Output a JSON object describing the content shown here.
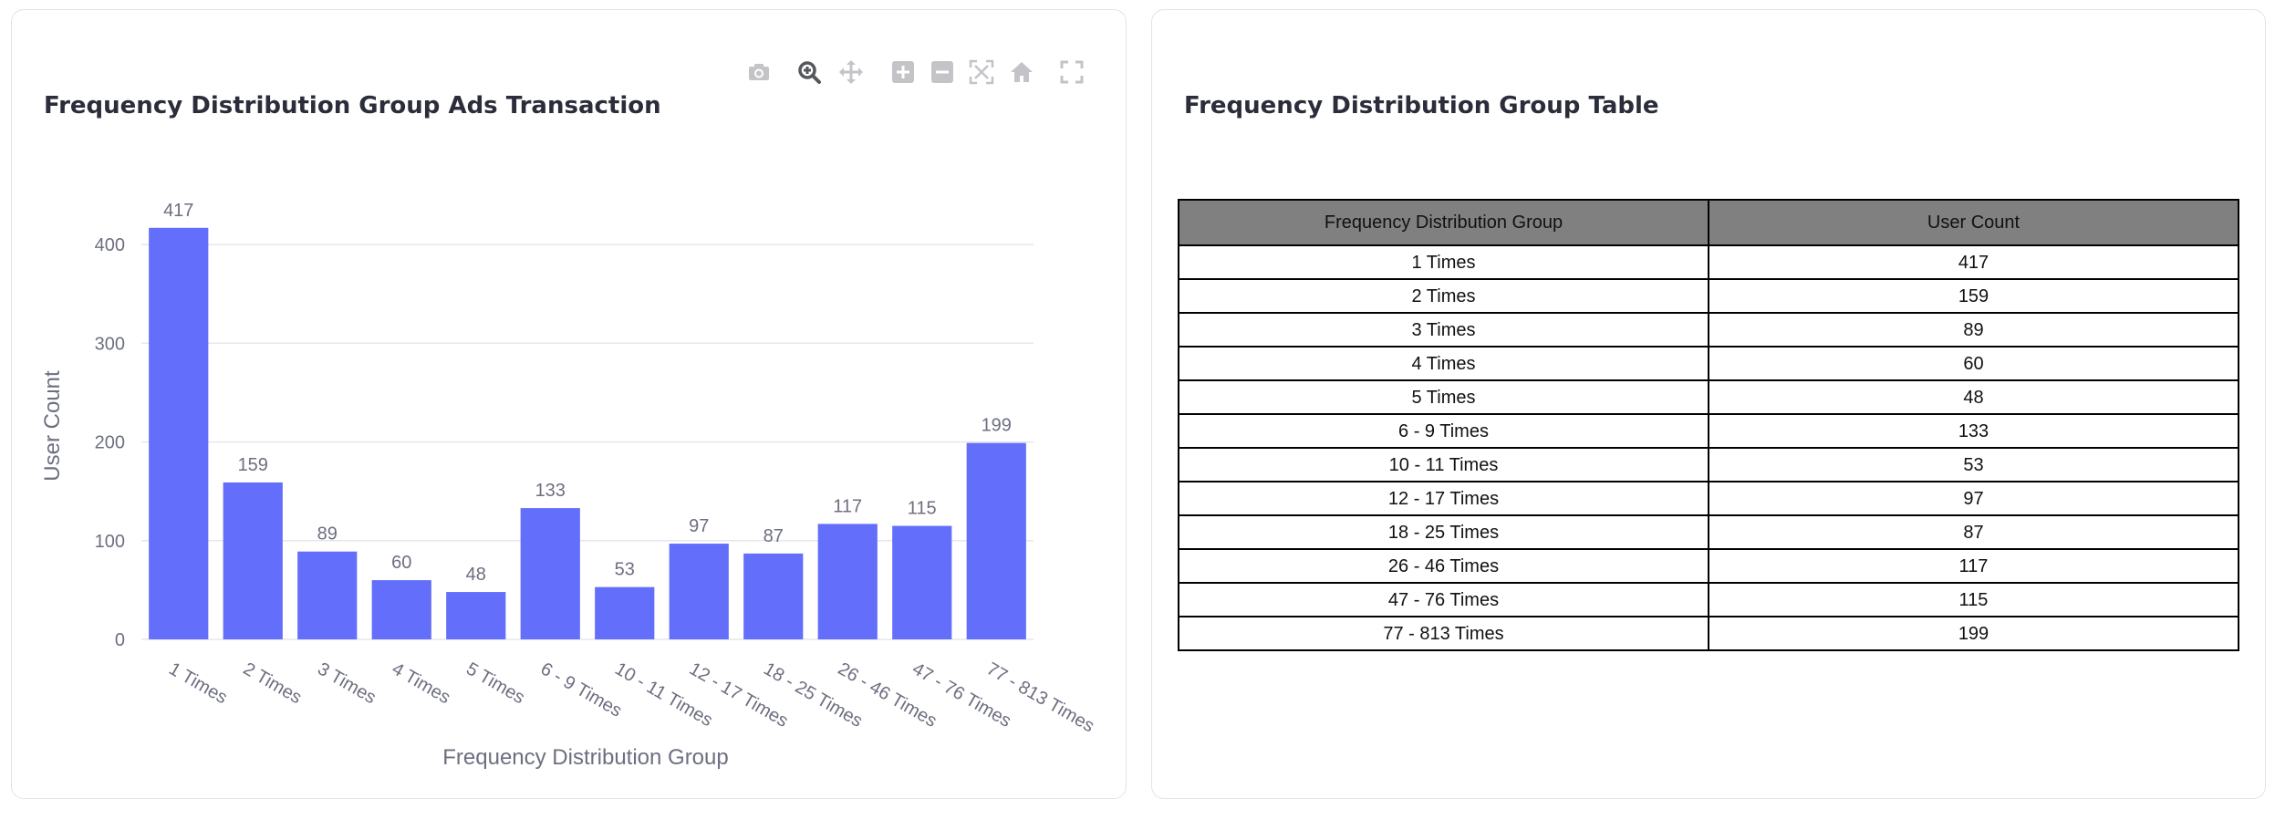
{
  "chart_panel": {
    "title": "Frequency Distribution Group Ads Transaction",
    "toolbar": {
      "camera": "camera-icon",
      "zoom": "zoom-icon",
      "pan": "pan-icon",
      "zoom_in": "zoom-in-icon",
      "zoom_out": "zoom-out-icon",
      "autoscale": "autoscale-icon",
      "reset": "home-icon",
      "fullscreen": "fullscreen-icon"
    }
  },
  "chart_data": {
    "type": "bar",
    "title": "Frequency Distribution Group Ads Transaction",
    "xlabel": "Frequency Distribution Group",
    "ylabel": "User Count",
    "categories": [
      "1 Times",
      "2 Times",
      "3 Times",
      "4 Times",
      "5 Times",
      "6 - 9 Times",
      "10 - 11 Times",
      "12 - 17 Times",
      "18 - 25 Times",
      "26 - 46 Times",
      "47 - 76 Times",
      "77 - 813 Times"
    ],
    "values": [
      417,
      159,
      89,
      60,
      48,
      133,
      53,
      97,
      87,
      117,
      115,
      199
    ],
    "yticks": [
      0,
      100,
      200,
      300,
      400
    ],
    "ylim": [
      0,
      439
    ],
    "grid": true,
    "bar_color": "#636efa",
    "data_labels": true
  },
  "table_panel": {
    "title": "Frequency Distribution Group Table",
    "headers": [
      "Frequency Distribution Group",
      "User Count"
    ],
    "rows": [
      [
        "1 Times",
        "417"
      ],
      [
        "2 Times",
        "159"
      ],
      [
        "3 Times",
        "89"
      ],
      [
        "4 Times",
        "60"
      ],
      [
        "5 Times",
        "48"
      ],
      [
        "6 - 9 Times",
        "133"
      ],
      [
        "10 - 11 Times",
        "53"
      ],
      [
        "12 - 17 Times",
        "97"
      ],
      [
        "18 - 25 Times",
        "87"
      ],
      [
        "26 - 46 Times",
        "117"
      ],
      [
        "47 - 76 Times",
        "115"
      ],
      [
        "77 - 813 Times",
        "199"
      ]
    ],
    "header_bg": "#808080"
  }
}
